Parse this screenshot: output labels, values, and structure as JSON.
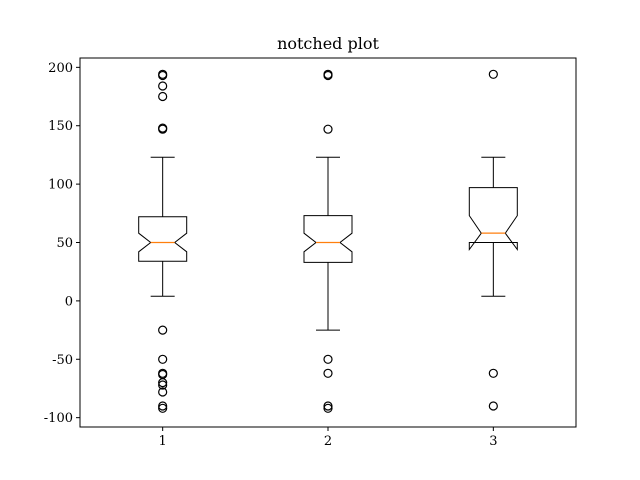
{
  "chart_data": {
    "type": "boxplot",
    "title": "notched plot",
    "xlabel": "",
    "ylabel": "",
    "xlim": [
      0.5,
      3.5
    ],
    "ylim": [
      -108,
      208
    ],
    "yticks": [
      -100,
      -50,
      0,
      50,
      100,
      150,
      200
    ],
    "xticks": [
      1,
      2,
      3
    ],
    "grid": false,
    "colors": {
      "box": "#000000",
      "median": "#ff7f0e",
      "flier": "#000000"
    },
    "boxes": [
      {
        "label": "1",
        "whisker_low": 4,
        "q1": 34,
        "notch_low": 42,
        "median": 50,
        "notch_high": 58,
        "q3": 72,
        "whisker_high": 123,
        "fliers": [
          194,
          193,
          184,
          175,
          148,
          147,
          -25,
          -50,
          -62,
          -63,
          -70,
          -72,
          -78,
          -90,
          -92
        ]
      },
      {
        "label": "2",
        "whisker_low": -25,
        "q1": 33,
        "notch_low": 42,
        "median": 50,
        "notch_high": 58,
        "q3": 73,
        "whisker_high": 123,
        "fliers": [
          194,
          193,
          147,
          -50,
          -62,
          -90,
          -92
        ]
      },
      {
        "label": "3",
        "whisker_low": 4,
        "q1": 50,
        "notch_low": 44,
        "median": 58,
        "notch_high": 73,
        "q3": 97,
        "whisker_high": 123,
        "fliers": [
          194,
          -62,
          -90
        ]
      }
    ]
  }
}
